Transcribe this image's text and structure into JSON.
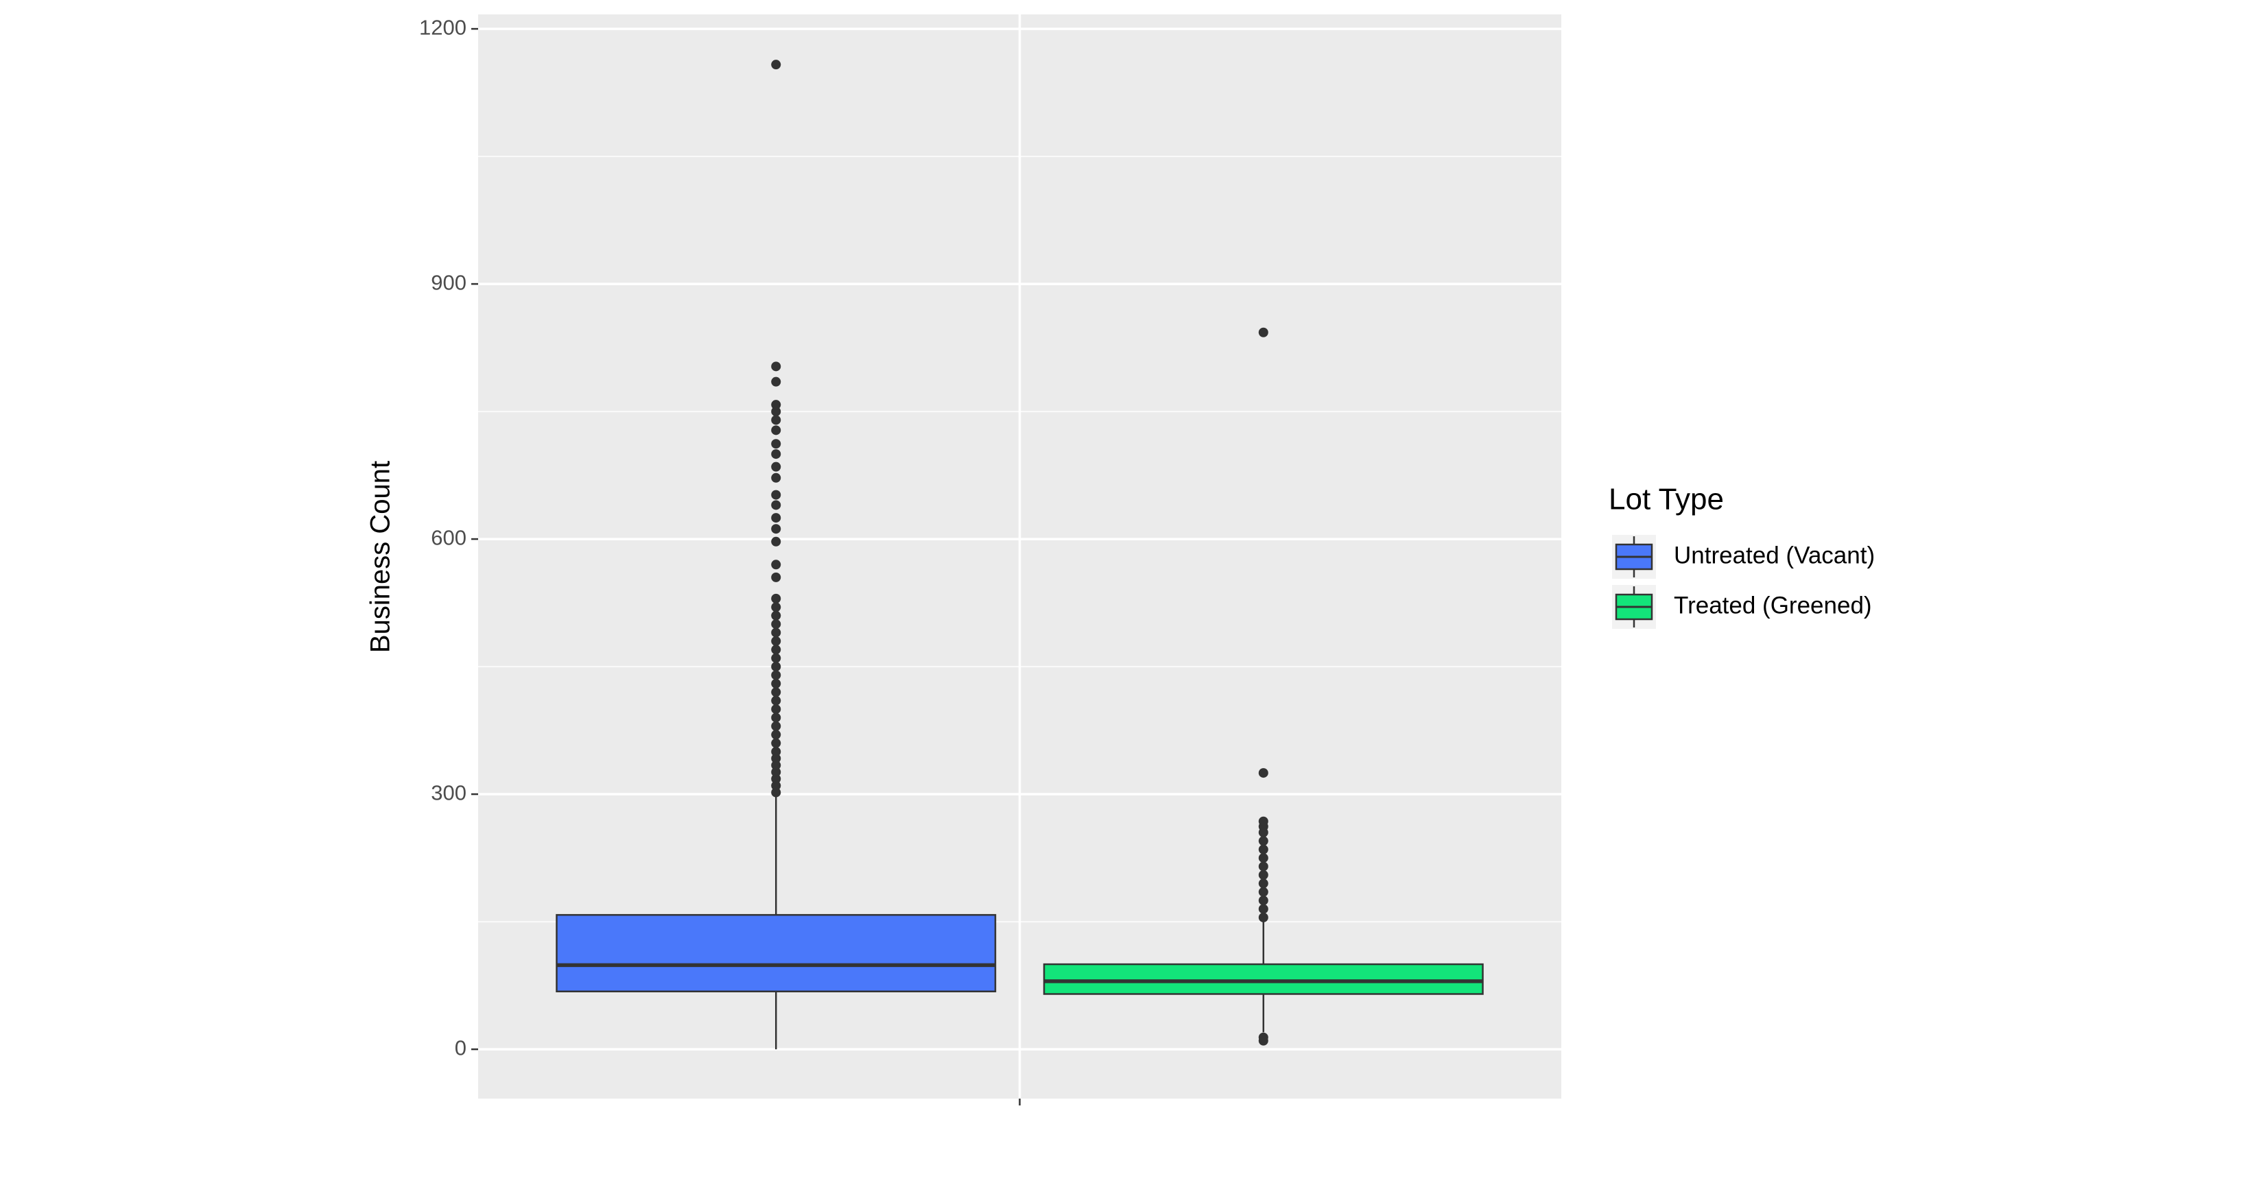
{
  "chart_data": {
    "type": "box",
    "y_label": "Business Count",
    "legend_title": "Lot Type",
    "categories": [
      null
    ],
    "ylim": [
      -58,
      1217
    ],
    "yticks": [
      0,
      300,
      600,
      900,
      1200
    ],
    "grid": true,
    "series": [
      {
        "name": "Untreated (Vacant)",
        "color": "#4a78fa",
        "min": 0,
        "q1": 68,
        "median": 99,
        "q3": 158,
        "max": 300,
        "outliers": [
          302,
          310,
          318,
          326,
          334,
          342,
          350,
          360,
          370,
          380,
          390,
          400,
          410,
          420,
          430,
          440,
          450,
          460,
          470,
          480,
          490,
          500,
          510,
          520,
          530,
          555,
          570,
          597,
          612,
          625,
          640,
          652,
          672,
          685,
          700,
          712,
          728,
          740,
          750,
          758,
          785,
          803,
          1158
        ]
      },
      {
        "name": "Treated (Greened)",
        "color": "#13e47a",
        "min": 20,
        "q1": 65,
        "median": 80,
        "q3": 100,
        "max": 150,
        "outliers": [
          10,
          14,
          155,
          165,
          175,
          185,
          195,
          205,
          215,
          225,
          235,
          245,
          255,
          262,
          268,
          325,
          843
        ]
      }
    ]
  }
}
